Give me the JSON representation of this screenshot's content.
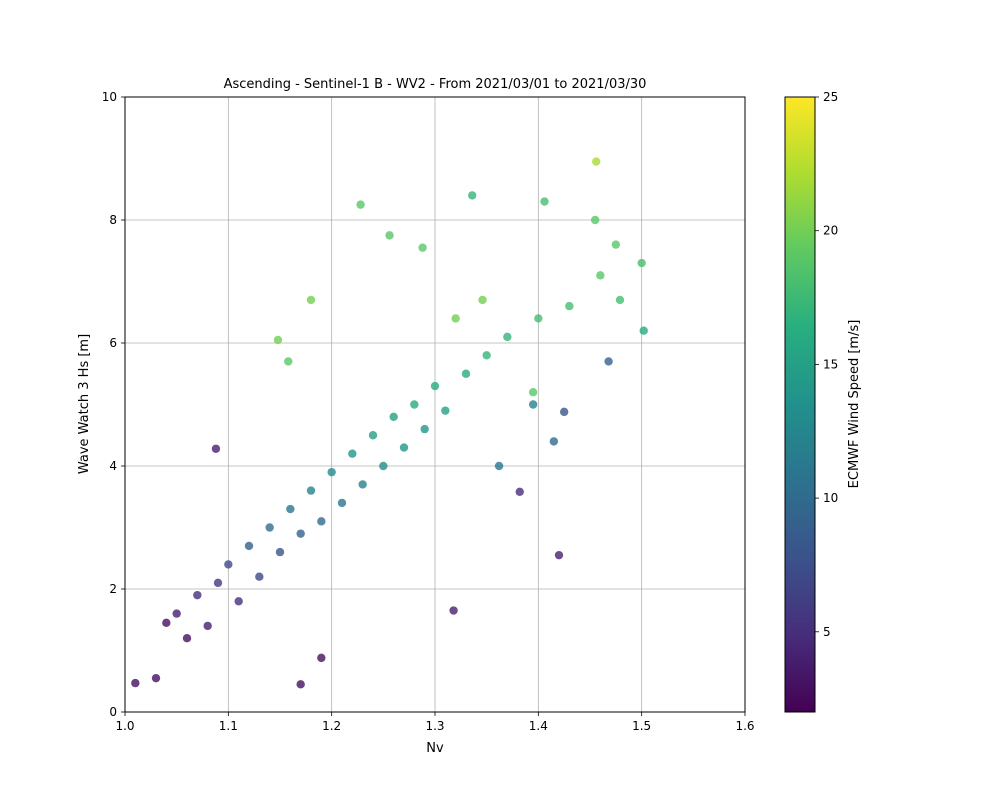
{
  "chart_data": {
    "type": "scatter",
    "title": "Ascending - Sentinel-1 B - WV2 - From 2021/03/01 to 2021/03/30",
    "xlabel": "Nv",
    "ylabel": "Wave Watch 3 Hs [m]",
    "xlim": [
      1.0,
      1.6
    ],
    "ylim": [
      0,
      10
    ],
    "x_ticks": [
      "1.0",
      "1.1",
      "1.2",
      "1.3",
      "1.4",
      "1.5",
      "1.6"
    ],
    "y_ticks": [
      "0",
      "2",
      "4",
      "6",
      "8",
      "10"
    ],
    "grid": true,
    "colorbar": {
      "label": "ECMWF Wind Speed [m/s]",
      "range": [
        2,
        25
      ],
      "ticks": [
        "5",
        "10",
        "15",
        "20",
        "25"
      ],
      "colormap": "viridis"
    },
    "points": [
      {
        "x": 1.03,
        "y": 0.55,
        "c": 3
      },
      {
        "x": 1.04,
        "y": 1.45,
        "c": 3
      },
      {
        "x": 1.05,
        "y": 1.6,
        "c": 4
      },
      {
        "x": 1.06,
        "y": 1.2,
        "c": 3
      },
      {
        "x": 1.07,
        "y": 1.9,
        "c": 5
      },
      {
        "x": 1.08,
        "y": 1.4,
        "c": 4
      },
      {
        "x": 1.09,
        "y": 2.1,
        "c": 6
      },
      {
        "x": 1.1,
        "y": 2.4,
        "c": 7
      },
      {
        "x": 1.11,
        "y": 1.8,
        "c": 5
      },
      {
        "x": 1.12,
        "y": 2.7,
        "c": 9
      },
      {
        "x": 1.13,
        "y": 2.2,
        "c": 7
      },
      {
        "x": 1.14,
        "y": 3.0,
        "c": 10
      },
      {
        "x": 1.15,
        "y": 2.6,
        "c": 8
      },
      {
        "x": 1.16,
        "y": 3.3,
        "c": 11
      },
      {
        "x": 1.17,
        "y": 2.9,
        "c": 9
      },
      {
        "x": 1.18,
        "y": 3.6,
        "c": 12
      },
      {
        "x": 1.19,
        "y": 3.1,
        "c": 10
      },
      {
        "x": 1.2,
        "y": 3.9,
        "c": 13
      },
      {
        "x": 1.21,
        "y": 3.4,
        "c": 11
      },
      {
        "x": 1.22,
        "y": 4.2,
        "c": 14
      },
      {
        "x": 1.23,
        "y": 3.7,
        "c": 12
      },
      {
        "x": 1.24,
        "y": 4.5,
        "c": 15
      },
      {
        "x": 1.25,
        "y": 4.0,
        "c": 13
      },
      {
        "x": 1.26,
        "y": 4.8,
        "c": 15
      },
      {
        "x": 1.27,
        "y": 4.3,
        "c": 14
      },
      {
        "x": 1.28,
        "y": 5.0,
        "c": 16
      },
      {
        "x": 1.29,
        "y": 4.6,
        "c": 14
      },
      {
        "x": 1.3,
        "y": 5.3,
        "c": 16
      },
      {
        "x": 1.31,
        "y": 4.9,
        "c": 15
      },
      {
        "x": 1.33,
        "y": 5.5,
        "c": 16
      },
      {
        "x": 1.35,
        "y": 5.8,
        "c": 17
      },
      {
        "x": 1.37,
        "y": 6.1,
        "c": 17
      },
      {
        "x": 1.4,
        "y": 6.4,
        "c": 18
      },
      {
        "x": 1.43,
        "y": 6.6,
        "c": 18
      },
      {
        "x": 1.46,
        "y": 7.1,
        "c": 19
      },
      {
        "x": 1.5,
        "y": 7.3,
        "c": 18
      },
      {
        "x": 1.502,
        "y": 6.2,
        "c": 16
      },
      {
        "x": 1.479,
        "y": 6.7,
        "c": 18
      },
      {
        "x": 1.475,
        "y": 7.6,
        "c": 19
      },
      {
        "x": 1.456,
        "y": 8.95,
        "c": 22
      },
      {
        "x": 1.455,
        "y": 8.0,
        "c": 19
      },
      {
        "x": 1.406,
        "y": 8.3,
        "c": 18
      },
      {
        "x": 1.336,
        "y": 8.4,
        "c": 17
      },
      {
        "x": 1.228,
        "y": 8.25,
        "c": 19
      },
      {
        "x": 1.468,
        "y": 5.7,
        "c": 9
      },
      {
        "x": 1.42,
        "y": 2.55,
        "c": 4
      },
      {
        "x": 1.318,
        "y": 1.65,
        "c": 4
      },
      {
        "x": 1.382,
        "y": 3.58,
        "c": 5
      },
      {
        "x": 1.425,
        "y": 4.88,
        "c": 8
      },
      {
        "x": 1.415,
        "y": 4.4,
        "c": 10
      },
      {
        "x": 1.395,
        "y": 5.0,
        "c": 12
      },
      {
        "x": 1.362,
        "y": 4.0,
        "c": 11
      },
      {
        "x": 1.088,
        "y": 4.28,
        "c": 4
      },
      {
        "x": 1.01,
        "y": 0.47,
        "c": 3
      },
      {
        "x": 1.17,
        "y": 0.45,
        "c": 3
      },
      {
        "x": 1.19,
        "y": 0.88,
        "c": 3
      },
      {
        "x": 1.18,
        "y": 6.7,
        "c": 20
      },
      {
        "x": 1.158,
        "y": 5.7,
        "c": 19
      },
      {
        "x": 1.148,
        "y": 6.05,
        "c": 20
      },
      {
        "x": 1.256,
        "y": 7.75,
        "c": 19
      },
      {
        "x": 1.288,
        "y": 7.55,
        "c": 19
      },
      {
        "x": 1.32,
        "y": 6.4,
        "c": 20
      },
      {
        "x": 1.346,
        "y": 6.7,
        "c": 20
      },
      {
        "x": 1.395,
        "y": 5.2,
        "c": 19
      }
    ]
  }
}
